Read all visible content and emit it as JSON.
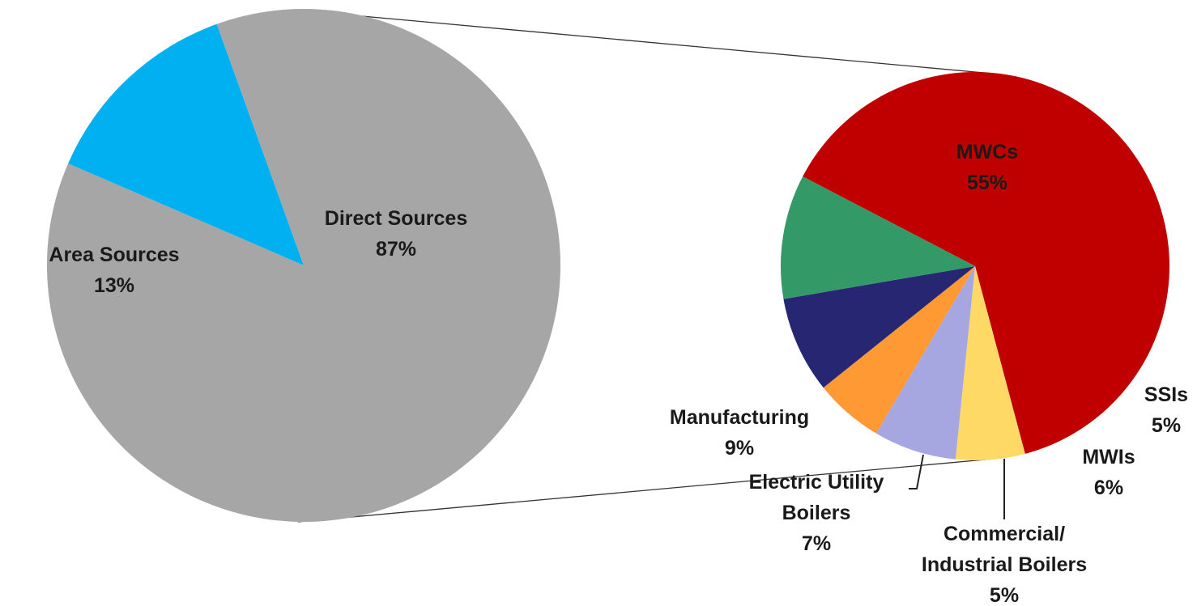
{
  "chart_data": [
    {
      "type": "pie",
      "slices": [
        {
          "label": "Direct Sources",
          "value": 87,
          "display": "87%",
          "color": "#a6a6a6"
        },
        {
          "label": "Area Sources",
          "value": 13,
          "display": "13%",
          "color": "#00b0f0"
        }
      ]
    },
    {
      "type": "pie",
      "slices": [
        {
          "label": "MWCs",
          "value": 55,
          "display": "55%",
          "color": "#c00000"
        },
        {
          "label": "SSIs",
          "value": 5,
          "display": "5%",
          "color": "#ffd966"
        },
        {
          "label": "MWIs",
          "value": 6,
          "display": "6%",
          "color": "#a6a6e0"
        },
        {
          "label": "Commercial/ Industrial Boilers",
          "value": 5,
          "display": "5%",
          "color": "#ff9933"
        },
        {
          "label": "Electric Utility Boilers",
          "value": 7,
          "display": "7%",
          "color": "#262673"
        },
        {
          "label": "Manufacturing",
          "value": 9,
          "display": "9%",
          "color": "#339966"
        }
      ]
    }
  ]
}
